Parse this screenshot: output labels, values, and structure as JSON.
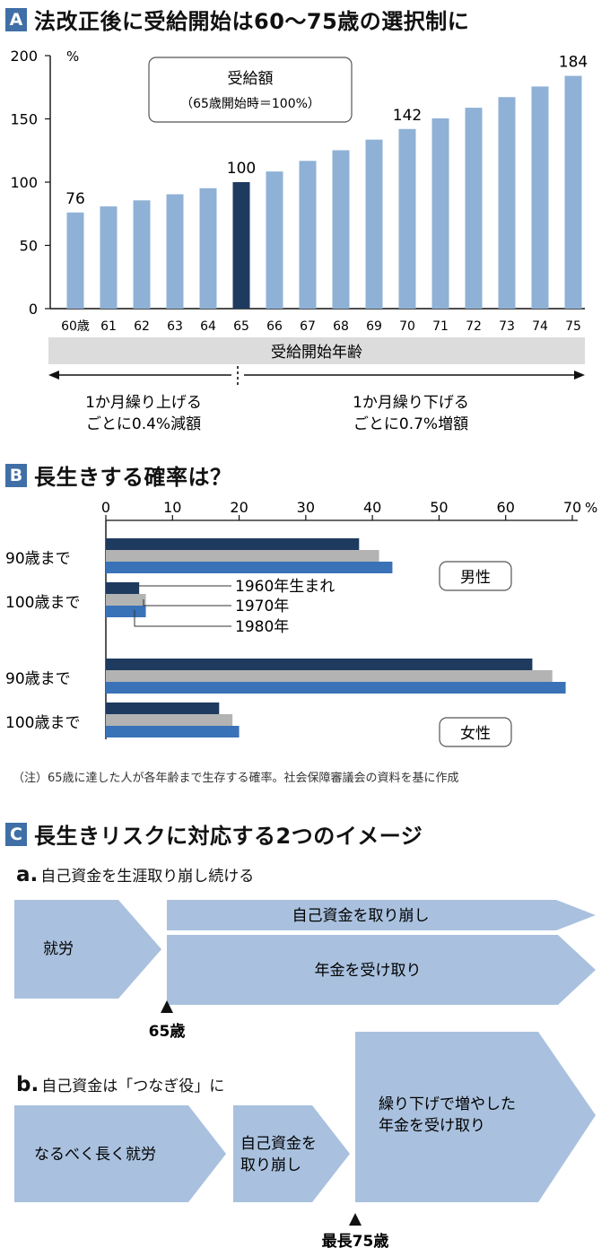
{
  "sectionA": {
    "badge": "A",
    "title": "法改正後に受給開始は60～75歳の選択制に",
    "box_title": "受給額",
    "box_subtitle": "（65歳開始時＝100%）",
    "xaxis_band": "受給開始年齢",
    "left_note_1": "1か月繰り上げる",
    "left_note_2": "ごとに0.4%減額",
    "right_note_1": "1か月繰り下げる",
    "right_note_2": "ごとに0.7%増額"
  },
  "sectionB": {
    "badge": "B",
    "title": "長生きする確率は？",
    "note": "（注）65歳に達した人が各年齢まで生存する確率。社会保障審議会の資料を基に作成"
  },
  "sectionC": {
    "badge": "C",
    "title": "長生きリスクに対応する2つのイメージ",
    "a_letter": "a.",
    "a_title": "自己資金を生涯取り崩し続ける",
    "a_work": "就労",
    "a_top": "自己資金を取り崩し",
    "a_bottom": "年金を受け取り",
    "a_marker": "65歳",
    "b_letter": "b.",
    "b_title": "自己資金は「つなぎ役」に",
    "b_work": "なるべく長く就労",
    "b_mid_1": "自己資金を",
    "b_mid_2": "取り崩し",
    "b_right_1": "繰り下げで増やした",
    "b_right_2": "年金を受け取り",
    "b_marker": "最長75歳"
  },
  "colors": {
    "bar": "#8fb1d6",
    "bar_highlight": "#1e3a5f",
    "s1960": "#1e3a5f",
    "s1970": "#b3b3b3",
    "s1980": "#3a72b8",
    "arrow_fill": "#a9c1de",
    "badge": "#3f6fa6"
  },
  "chart_data": [
    {
      "type": "bar",
      "categories": [
        "60歳",
        "61",
        "62",
        "63",
        "64",
        "65",
        "66",
        "67",
        "68",
        "69",
        "70",
        "71",
        "72",
        "73",
        "74",
        "75"
      ],
      "values": [
        76,
        80.8,
        85.6,
        90.4,
        95.2,
        100,
        108.4,
        116.8,
        125.2,
        133.6,
        142,
        150.4,
        158.8,
        167.2,
        175.6,
        184
      ],
      "data_labels": {
        "0": "76",
        "5": "100",
        "10": "142",
        "15": "184"
      },
      "highlight_index": 5,
      "yticks": [
        "0",
        "50",
        "100",
        "150",
        "200"
      ],
      "ylim": [
        0,
        200
      ],
      "yunit": "%",
      "xlabel": "受給開始年齢"
    },
    {
      "type": "bar",
      "orientation": "horizontal",
      "xticks": [
        "0",
        "10",
        "20",
        "30",
        "40",
        "50",
        "60",
        "70"
      ],
      "xunit": "%",
      "xlim": [
        0,
        70
      ],
      "series_names": [
        "1960年生まれ",
        "1970年",
        "1980年"
      ],
      "groups": [
        {
          "label": "90歳まで",
          "sex": "男性",
          "values": [
            38,
            41,
            43
          ]
        },
        {
          "label": "100歳まで",
          "sex": "男性",
          "values": [
            5,
            6,
            6
          ]
        },
        {
          "label": "90歳まで",
          "sex": "女性",
          "values": [
            64,
            67,
            69
          ]
        },
        {
          "label": "100歳まで",
          "sex": "女性",
          "values": [
            17,
            19,
            20
          ]
        }
      ],
      "sex_labels": [
        "男性",
        "女性"
      ]
    }
  ]
}
